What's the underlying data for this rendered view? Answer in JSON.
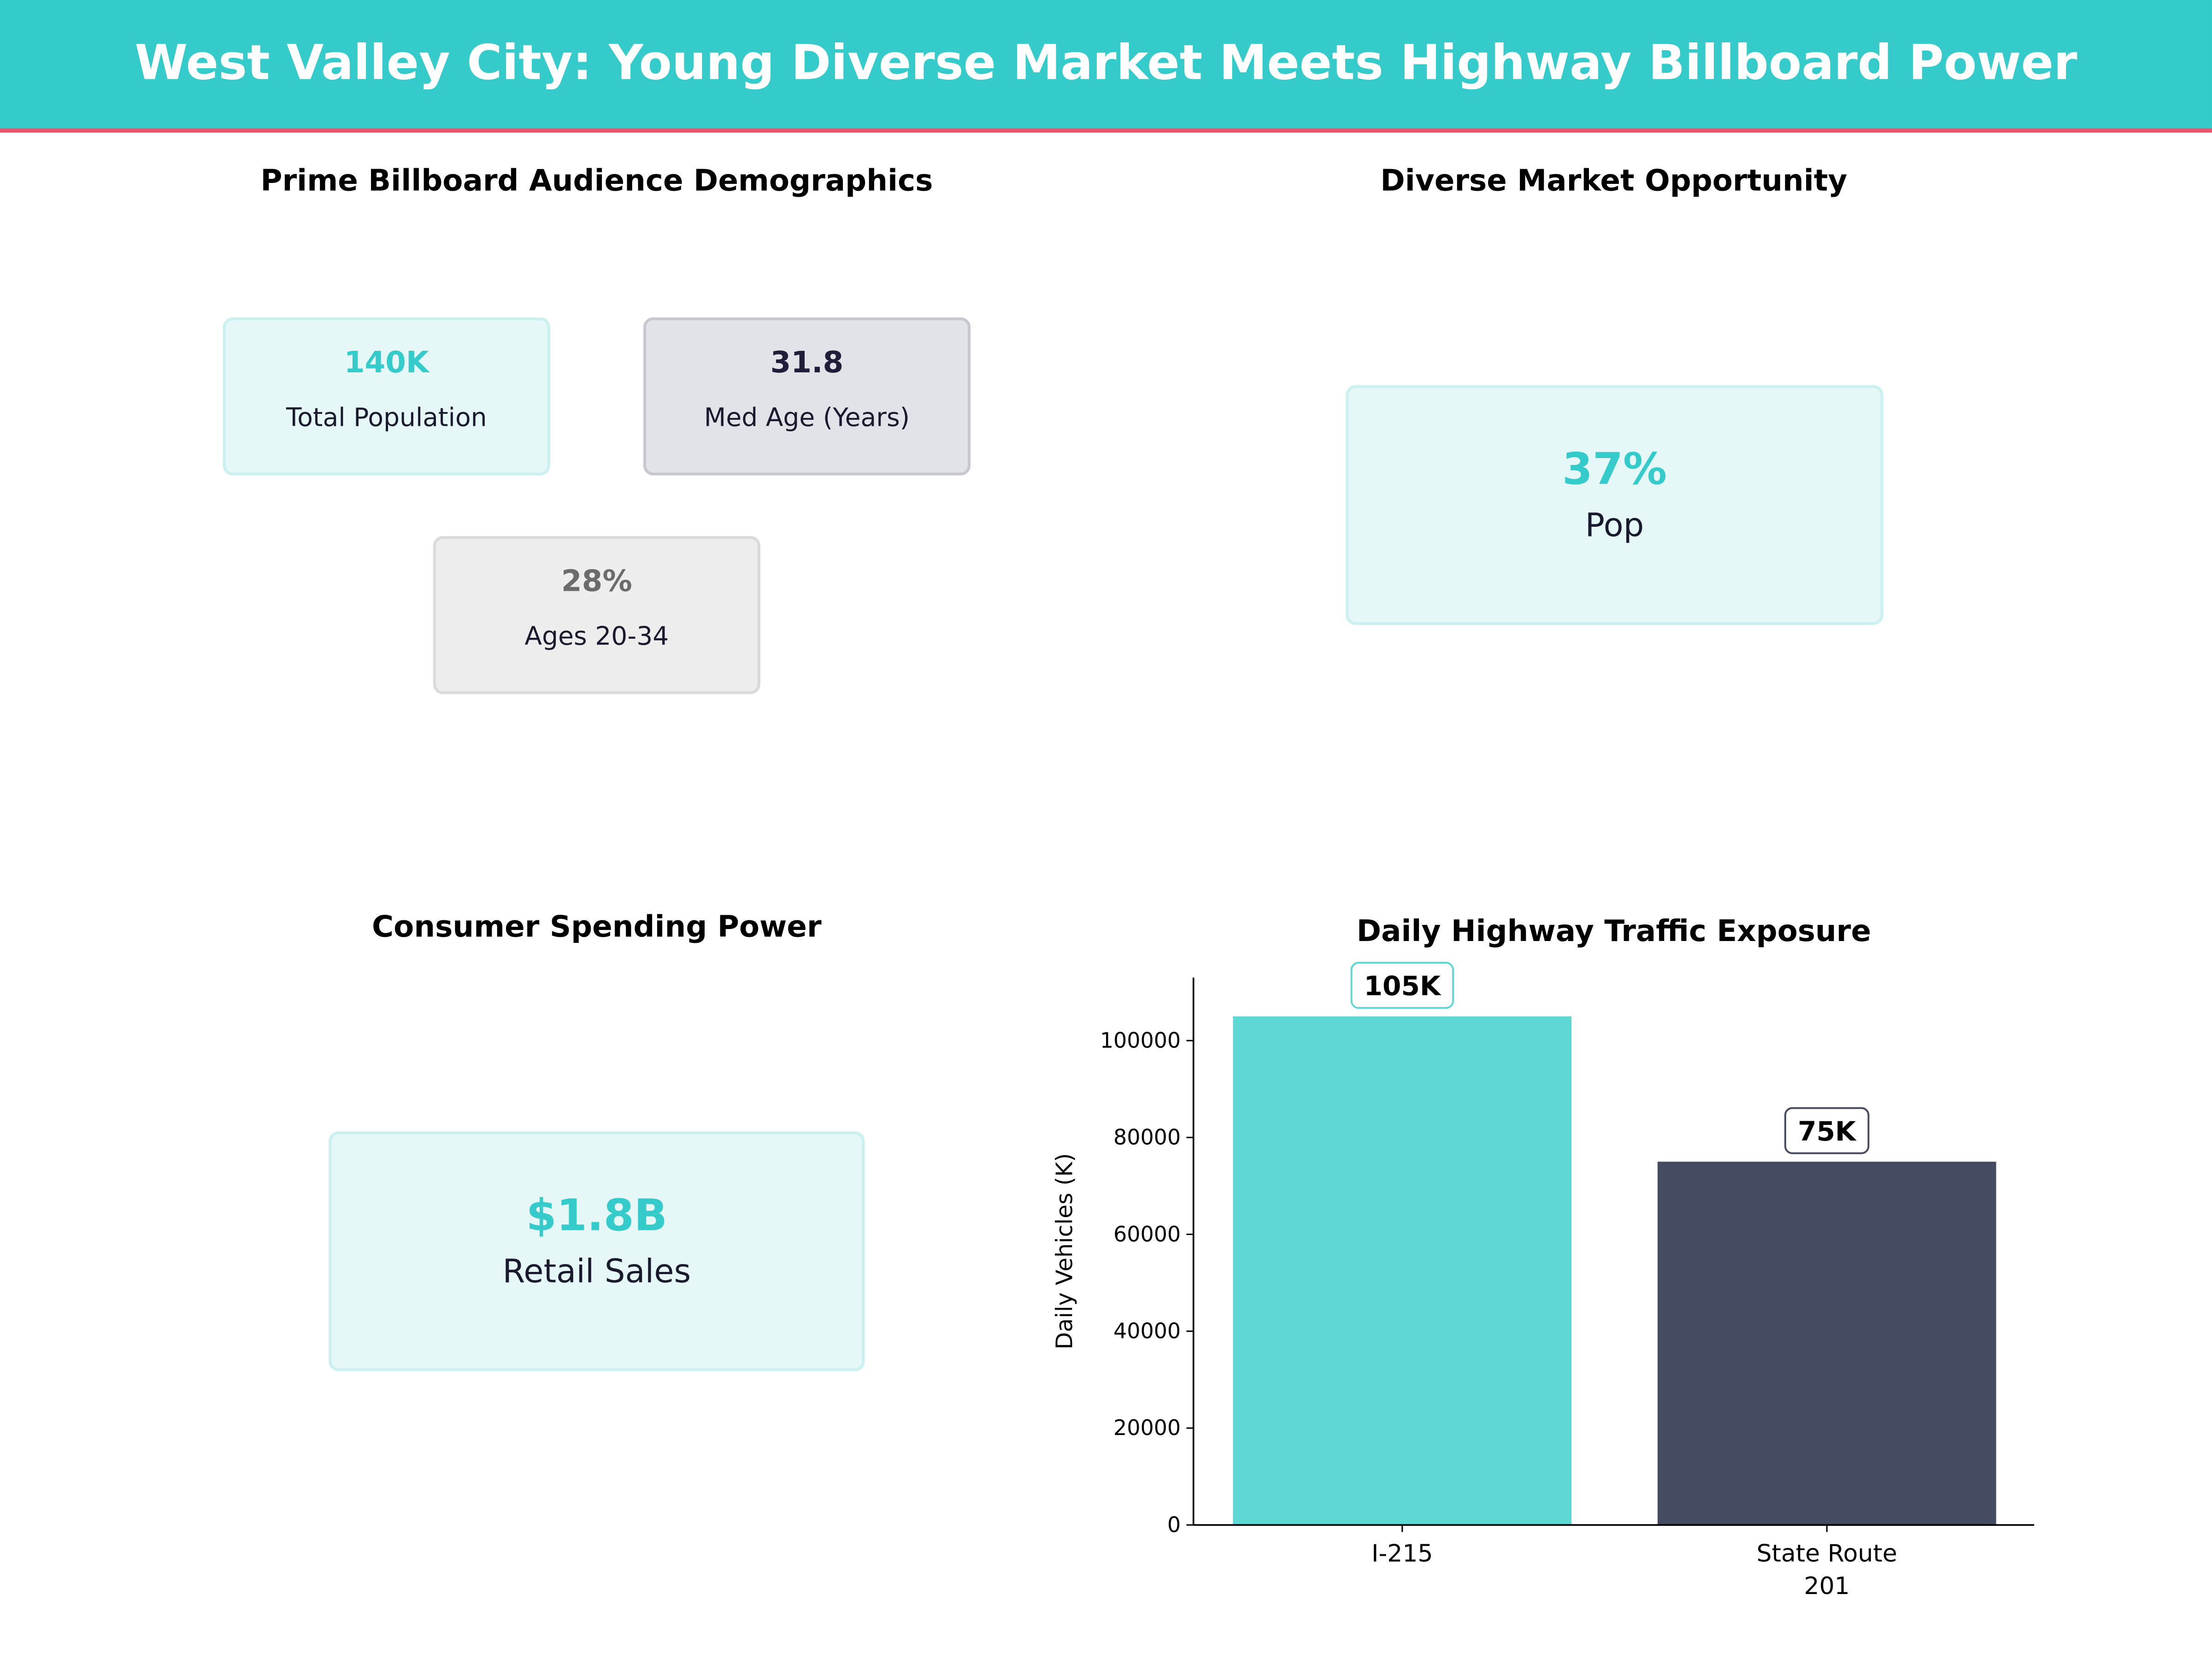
{
  "header": {
    "title": "West Valley City: Young Diverse Market Meets Highway Billboard Power"
  },
  "demographics": {
    "title": "Prime Billboard Audience Demographics",
    "cards": [
      {
        "value": "140K",
        "label": "Total Population",
        "color": "#36CBCB"
      },
      {
        "value": "31.8",
        "label": "Med Age (Years)",
        "color": "#1E1E3A"
      },
      {
        "value": "28%",
        "label": "Ages 20-34",
        "color": "#6B6B6B"
      }
    ]
  },
  "diverse": {
    "title": "Diverse Market Opportunity",
    "value": "37%",
    "label": "Pop"
  },
  "spending": {
    "title": "Consumer Spending Power",
    "value": "$1.8B",
    "label": "Retail Sales"
  },
  "chart_data": {
    "type": "bar",
    "title": "Daily Highway Traffic Exposure",
    "xlabel": "",
    "ylabel": "Daily Vehicles (K)",
    "categories": [
      "I-215",
      "State Route\n201"
    ],
    "values": [
      105000,
      75000
    ],
    "data_labels": [
      "105K",
      "75K"
    ],
    "colors": [
      "#5DD8D5",
      "#454B61"
    ],
    "label_border_colors": [
      "#5DD8D5",
      "#454B61"
    ],
    "ylim": [
      0,
      113000
    ],
    "yticks": [
      0,
      20000,
      40000,
      60000,
      80000,
      100000
    ],
    "grid": false
  }
}
